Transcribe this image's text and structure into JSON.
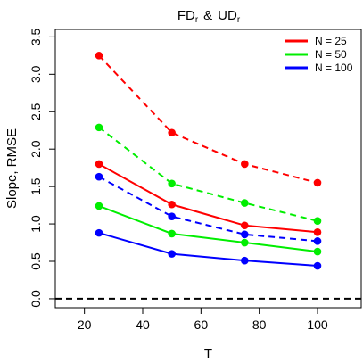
{
  "chart_data": {
    "type": "line",
    "title_parts": {
      "base1": "FD",
      "sub1": "r",
      "join": "&",
      "base2": "UD",
      "sub2": "r"
    },
    "xlabel": "T",
    "ylabel": "Slope, RMSE",
    "xlim": [
      10,
      115
    ],
    "ylim": [
      -0.12,
      3.6
    ],
    "xticks": [
      20,
      40,
      60,
      80,
      100
    ],
    "yticks": [
      0.0,
      0.5,
      1.0,
      1.5,
      2.0,
      2.5,
      3.0,
      3.5
    ],
    "ytick_labels": [
      "0.0",
      "0.5",
      "1.0",
      "1.5",
      "2.0",
      "2.5",
      "3.0",
      "3.5"
    ],
    "x": [
      25,
      50,
      75,
      100
    ],
    "reference_line": {
      "y": 0,
      "style": "dashed",
      "color": "#000000"
    },
    "legend": {
      "position": "top-right"
    },
    "series": [
      {
        "name": "N = 25",
        "color": "#ff0000",
        "slope": [
          1.8,
          1.26,
          0.98,
          0.89
        ],
        "rmse": [
          3.25,
          2.22,
          1.8,
          1.55
        ]
      },
      {
        "name": "N = 50",
        "color": "#00ee00",
        "slope": [
          1.24,
          0.87,
          0.75,
          0.63
        ],
        "rmse": [
          2.29,
          1.54,
          1.28,
          1.04
        ]
      },
      {
        "name": "N = 100",
        "color": "#0000ff",
        "slope": [
          0.88,
          0.6,
          0.51,
          0.44
        ],
        "rmse": [
          1.63,
          1.1,
          0.86,
          0.77
        ]
      }
    ]
  }
}
